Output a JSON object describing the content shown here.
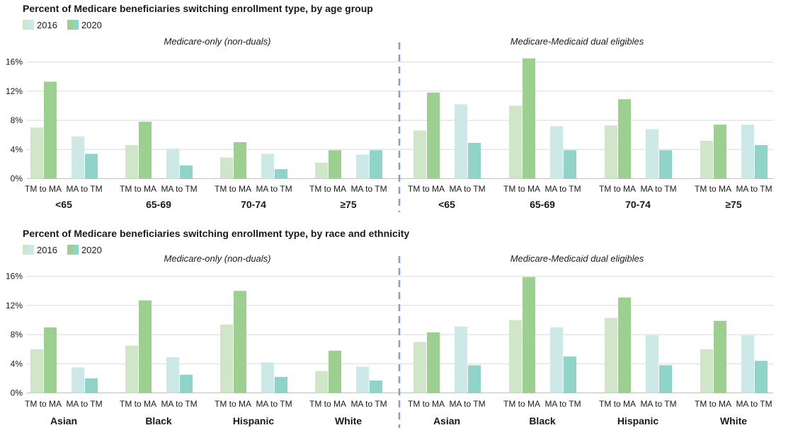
{
  "legend": {
    "y2016": "2016",
    "y2020": "2020"
  },
  "colors": {
    "tm_to_ma_2016": "#cfe6c8",
    "tm_to_ma_2020": "#9ccf90",
    "ma_to_tm_2016": "#cde9e7",
    "ma_to_tm_2020": "#8fd3c9",
    "grid": "#d9d9d9",
    "divider": "#7f9fd6"
  },
  "chart_data": [
    {
      "type": "bar",
      "title": "Percent of Medicare beneficiaries switching enrollment type, by age group",
      "ylim": [
        0,
        17
      ],
      "yticks": [
        "0%",
        "4%",
        "8%",
        "12%",
        "16%"
      ],
      "ytick_values": [
        0,
        4,
        8,
        12,
        16
      ],
      "panels": [
        {
          "label": "Medicare-only (non-duals)",
          "groups": [
            {
              "name": "<65",
              "tm_to_ma": [
                7.0,
                13.3
              ],
              "ma_to_tm": [
                5.8,
                3.4
              ]
            },
            {
              "name": "65-69",
              "tm_to_ma": [
                4.6,
                7.8
              ],
              "ma_to_tm": [
                4.1,
                1.8
              ]
            },
            {
              "name": "70-74",
              "tm_to_ma": [
                2.9,
                5.0
              ],
              "ma_to_tm": [
                3.4,
                1.3
              ]
            },
            {
              "name": "≥75",
              "tm_to_ma": [
                2.2,
                3.9
              ],
              "ma_to_tm": [
                3.3,
                3.9
              ]
            }
          ]
        },
        {
          "label": "Medicare-Medicaid dual eligibles",
          "groups": [
            {
              "name": "<65",
              "tm_to_ma": [
                6.6,
                11.8
              ],
              "ma_to_tm": [
                10.2,
                4.9
              ]
            },
            {
              "name": "65-69",
              "tm_to_ma": [
                10.0,
                16.5
              ],
              "ma_to_tm": [
                7.2,
                3.9
              ]
            },
            {
              "name": "70-74",
              "tm_to_ma": [
                7.3,
                10.9
              ],
              "ma_to_tm": [
                6.8,
                3.9
              ]
            },
            {
              "name": "≥75",
              "tm_to_ma": [
                5.2,
                7.4
              ],
              "ma_to_tm": [
                7.4,
                4.6
              ]
            }
          ]
        }
      ],
      "bar_labels": [
        "TM to MA",
        "MA to TM"
      ],
      "series": [
        "2016",
        "2020"
      ]
    },
    {
      "type": "bar",
      "title": "Percent of Medicare beneficiaries switching enrollment type, by race and ethnicity",
      "ylim": [
        0,
        17
      ],
      "yticks": [
        "0%",
        "4%",
        "8%",
        "12%",
        "16%"
      ],
      "ytick_values": [
        0,
        4,
        8,
        12,
        16
      ],
      "panels": [
        {
          "label": "Medicare-only (non-duals)",
          "groups": [
            {
              "name": "Asian",
              "tm_to_ma": [
                6.0,
                9.0
              ],
              "ma_to_tm": [
                3.5,
                2.0
              ]
            },
            {
              "name": "Black",
              "tm_to_ma": [
                6.5,
                12.7
              ],
              "ma_to_tm": [
                4.9,
                2.5
              ]
            },
            {
              "name": "Hispanic",
              "tm_to_ma": [
                9.4,
                14.0
              ],
              "ma_to_tm": [
                4.2,
                2.2
              ]
            },
            {
              "name": "White",
              "tm_to_ma": [
                3.0,
                5.8
              ],
              "ma_to_tm": [
                3.6,
                1.7
              ]
            }
          ]
        },
        {
          "label": "Medicare-Medicaid dual eligibles",
          "groups": [
            {
              "name": "Asian",
              "tm_to_ma": [
                7.0,
                8.3
              ],
              "ma_to_tm": [
                9.1,
                3.8
              ]
            },
            {
              "name": "Black",
              "tm_to_ma": [
                10.0,
                15.9
              ],
              "ma_to_tm": [
                9.0,
                5.0
              ]
            },
            {
              "name": "Hispanic",
              "tm_to_ma": [
                10.3,
                13.1
              ],
              "ma_to_tm": [
                7.9,
                3.8
              ]
            },
            {
              "name": "White",
              "tm_to_ma": [
                6.0,
                9.9
              ],
              "ma_to_tm": [
                7.9,
                4.4
              ]
            }
          ]
        }
      ],
      "bar_labels": [
        "TM to MA",
        "MA to TM"
      ],
      "series": [
        "2016",
        "2020"
      ]
    }
  ]
}
